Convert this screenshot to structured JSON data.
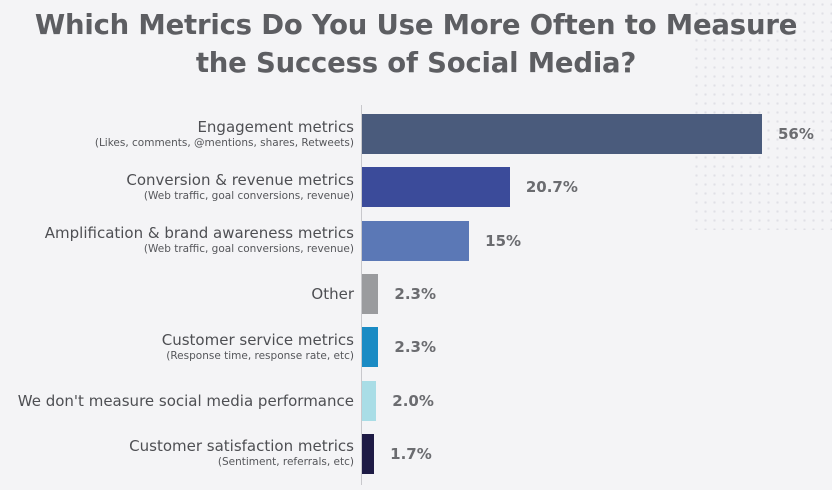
{
  "chart_data": {
    "type": "bar",
    "orientation": "horizontal",
    "title": "Which Metrics Do You Use More Often to Measure the Success of Social Media?",
    "title_lines": [
      "Which Metrics Do You Use More Often to Measure",
      "the Success of Social Media?"
    ],
    "categories": [
      {
        "label": "Engagement metrics",
        "sublabel": "(Likes, comments, @mentions, shares, Retweets)"
      },
      {
        "label": "Conversion & revenue metrics",
        "sublabel": "(Web traffic, goal conversions, revenue)"
      },
      {
        "label": "Amplification & brand awareness metrics",
        "sublabel": "(Web traffic, goal conversions, revenue)"
      },
      {
        "label": "Other",
        "sublabel": ""
      },
      {
        "label": "Customer service metrics",
        "sublabel": "(Response time, response rate, etc)"
      },
      {
        "label": "We don't measure social media performance",
        "sublabel": ""
      },
      {
        "label": "Customer satisfaction metrics",
        "sublabel": "(Sentiment, referrals, etc)"
      }
    ],
    "values": [
      56,
      20.7,
      15,
      2.3,
      2.3,
      2.0,
      1.7
    ],
    "value_labels": [
      "56%",
      "20.7%",
      "15%",
      "2.3%",
      "2.3%",
      "2.0%",
      "1.7%"
    ],
    "colors": [
      "#4a5b7c",
      "#3b4b9a",
      "#5b78b6",
      "#9a9b9e",
      "#1a8bc4",
      "#a9dde6",
      "#1e1b45"
    ],
    "unit": "%",
    "xlim": [
      0,
      56
    ],
    "grid": false,
    "legend": "none"
  }
}
